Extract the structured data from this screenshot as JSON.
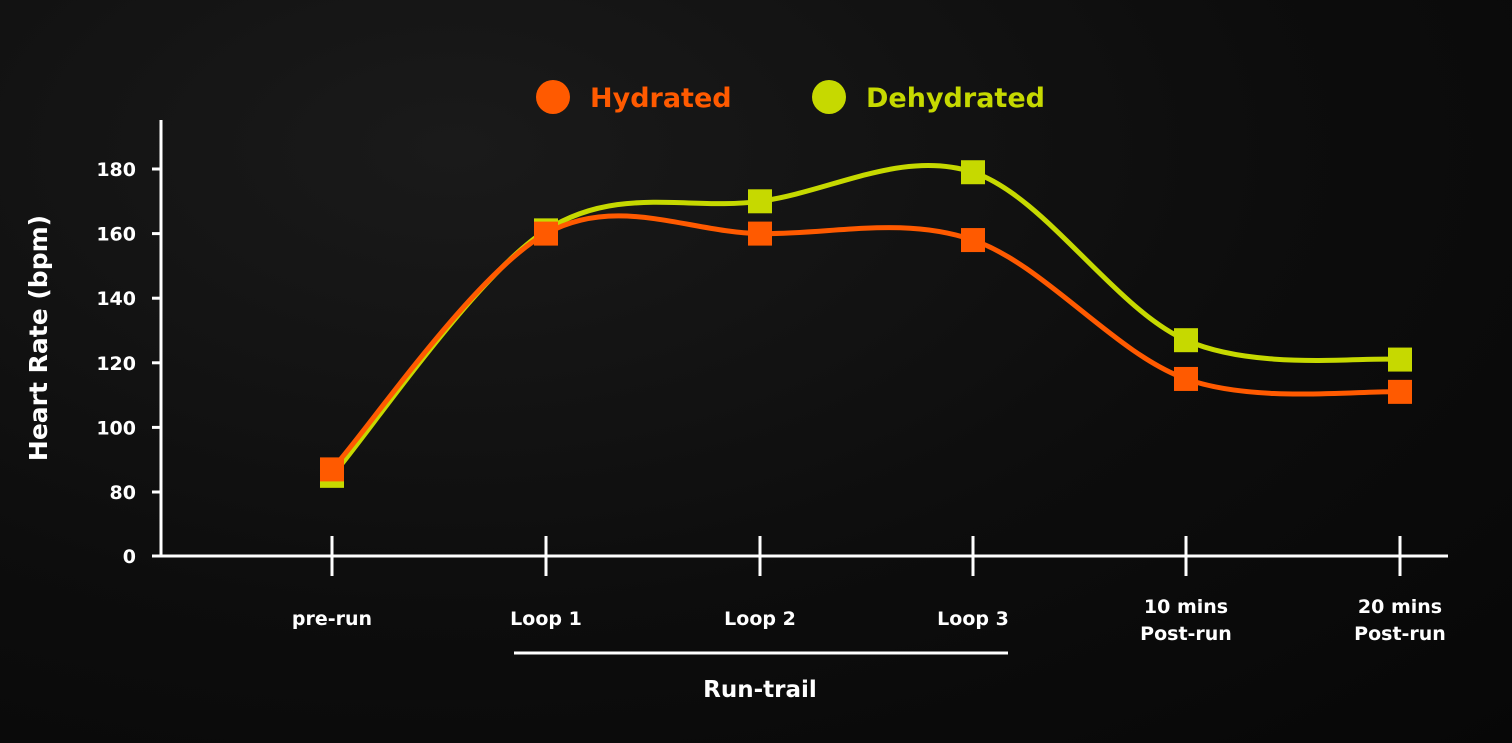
{
  "chart_data": {
    "type": "line",
    "categories": [
      [
        "pre-run"
      ],
      [
        "Loop 1"
      ],
      [
        "Loop 2"
      ],
      [
        "Loop 3"
      ],
      [
        "10 mins",
        "Post-run"
      ],
      [
        "20 mins",
        "Post-run"
      ]
    ],
    "series": [
      {
        "name": "Hydrated",
        "color": "#ff5a00",
        "values": [
          87,
          160,
          160,
          158,
          115,
          111
        ]
      },
      {
        "name": "Dehydrated",
        "color": "#c6d900",
        "values": [
          85,
          161,
          170,
          179,
          127,
          121
        ]
      }
    ],
    "ylabel": "Heart Rate (bpm)",
    "yticks": [
      "0",
      "80",
      "100",
      "120",
      "140",
      "160",
      "180"
    ],
    "ylim": [
      80,
      180
    ],
    "axis_break": "0 placed at baseline below 80",
    "group_label": "Run-trail",
    "group_covers": [
      "Loop 1",
      "Loop 2",
      "Loop 3"
    ],
    "marker": "square",
    "legend_position": "top",
    "background": "#0b0b0b",
    "text_color": "#ffffff"
  }
}
